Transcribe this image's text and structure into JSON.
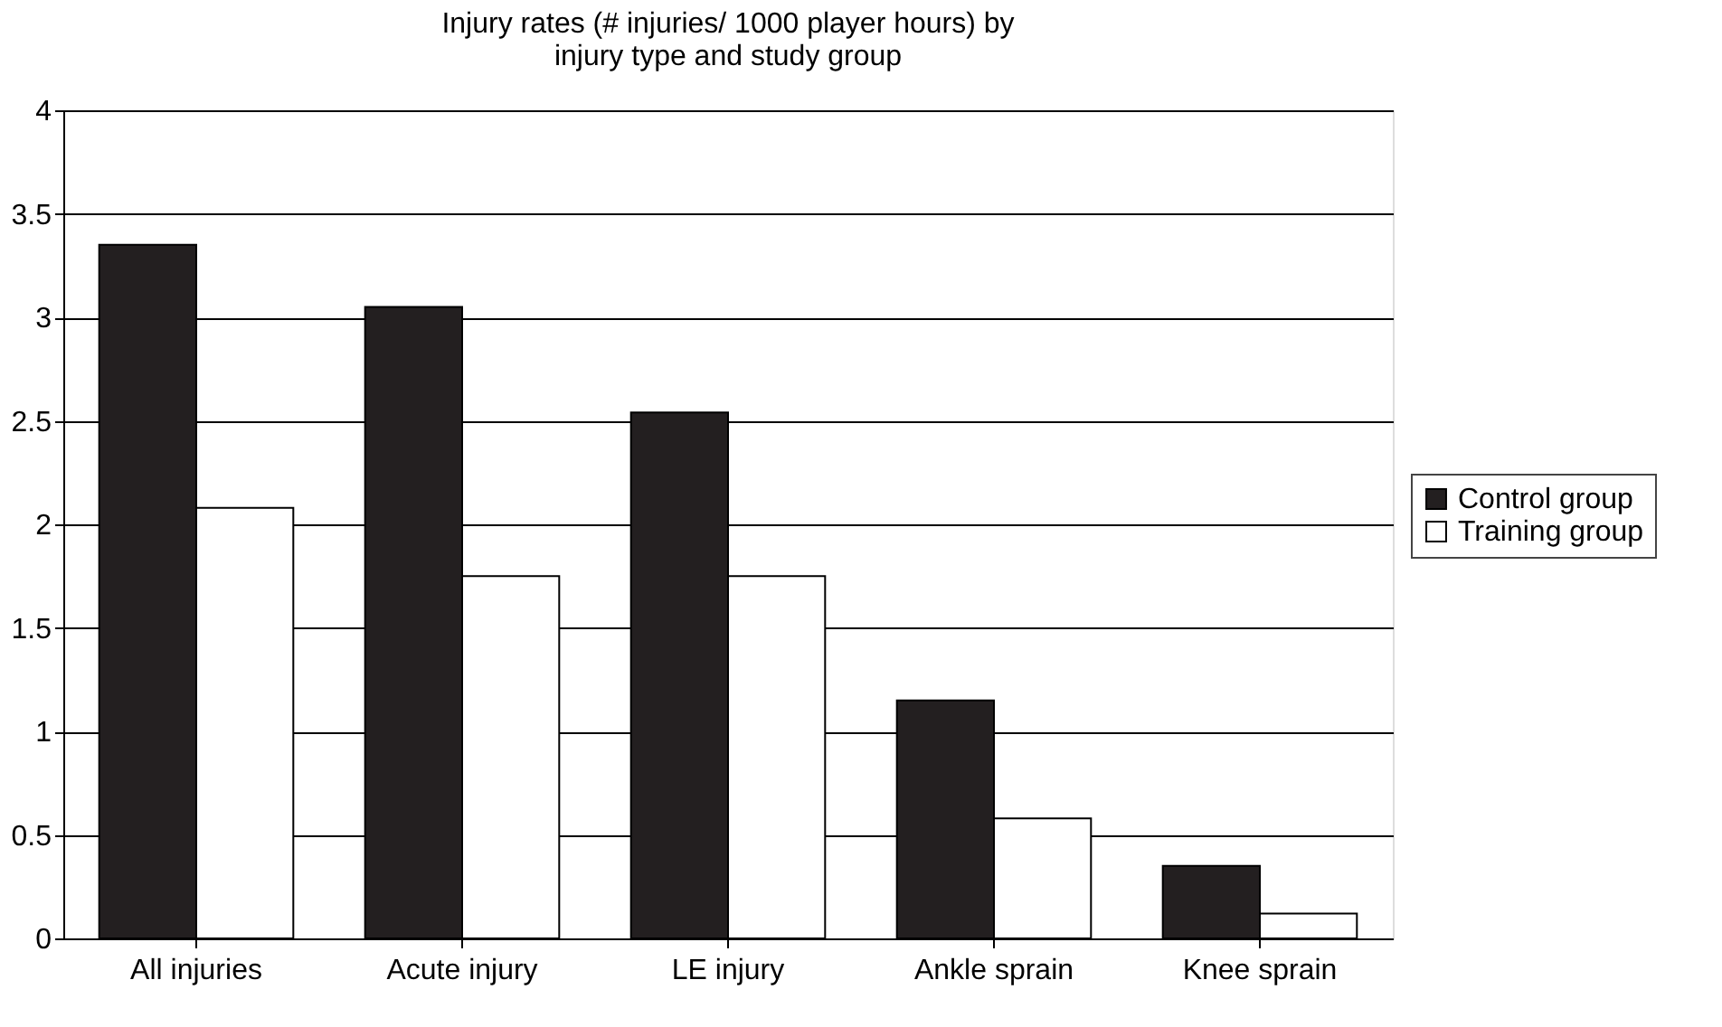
{
  "chart_data": {
    "type": "bar",
    "title": "Injury rates (# injuries/ 1000 player hours) by\ninjury type and study group",
    "categories": [
      "All injuries",
      "Acute injury",
      "LE injury",
      "Ankle sprain",
      "Knee sprain"
    ],
    "series": [
      {
        "name": "Control group",
        "color": "#231f20",
        "values": [
          3.35,
          3.05,
          2.54,
          1.15,
          0.35
        ]
      },
      {
        "name": "Training group",
        "color": "#ffffff",
        "values": [
          2.08,
          1.75,
          1.75,
          0.58,
          0.12
        ]
      }
    ],
    "ylim": [
      0,
      4
    ],
    "yticks": [
      0,
      0.5,
      1,
      1.5,
      2,
      2.5,
      3,
      3.5,
      4
    ],
    "grid": "y",
    "legend": "right"
  }
}
